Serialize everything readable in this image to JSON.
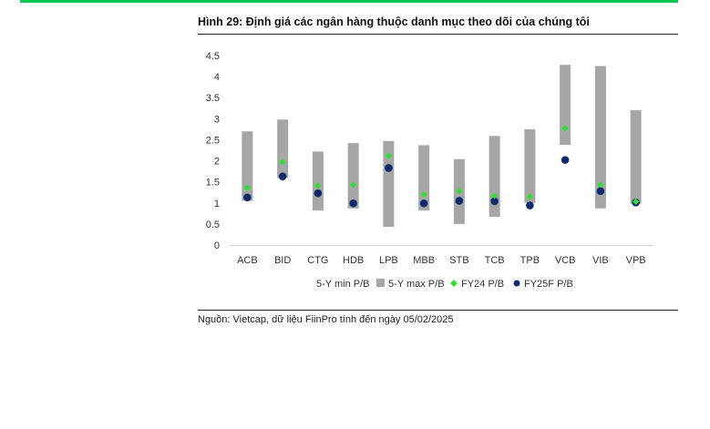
{
  "title": "Hình 29: Định giá các ngân hàng thuộc danh mục theo dõi của chúng tôi",
  "source": "Nguồn: Vietcap, dữ liệu FiinPro tính đến ngày 05/02/2025",
  "colors": {
    "accent_bar": "#00c853",
    "range_bar": "#a6a6a6",
    "fy24": "#33dd33",
    "fy25f": "#0d2a6b"
  },
  "chart_data": {
    "type": "bar",
    "categories": [
      "ACB",
      "BID",
      "CTG",
      "HDB",
      "LPB",
      "MBB",
      "STB",
      "TCB",
      "TPB",
      "VCB",
      "VIB",
      "VPB"
    ],
    "ylim": [
      0,
      4.5
    ],
    "yticks": [
      "0",
      "0.5",
      "1",
      "1.5",
      "2",
      "2.5",
      "3",
      "3.5",
      "4",
      "4.5"
    ],
    "series": [
      {
        "name": "5-Y min P/B",
        "values": [
          1.05,
          1.6,
          0.82,
          0.87,
          0.43,
          0.82,
          0.5,
          0.67,
          1.0,
          2.38,
          0.87,
          0.98
        ]
      },
      {
        "name": "5-Y max P/B",
        "values": [
          2.7,
          2.98,
          2.22,
          2.42,
          2.47,
          2.37,
          2.04,
          2.59,
          2.75,
          4.28,
          4.25,
          3.2
        ]
      },
      {
        "name": "FY24 P/B",
        "values": [
          1.36,
          1.97,
          1.41,
          1.43,
          2.12,
          1.2,
          1.28,
          1.17,
          1.15,
          2.77,
          1.43,
          1.03
        ]
      },
      {
        "name": "FY25F P/B",
        "values": [
          1.13,
          1.63,
          1.23,
          0.99,
          1.83,
          0.99,
          1.05,
          1.04,
          0.94,
          2.02,
          1.28,
          1.01
        ]
      }
    ],
    "legend_position": "bottom",
    "grid": false
  }
}
